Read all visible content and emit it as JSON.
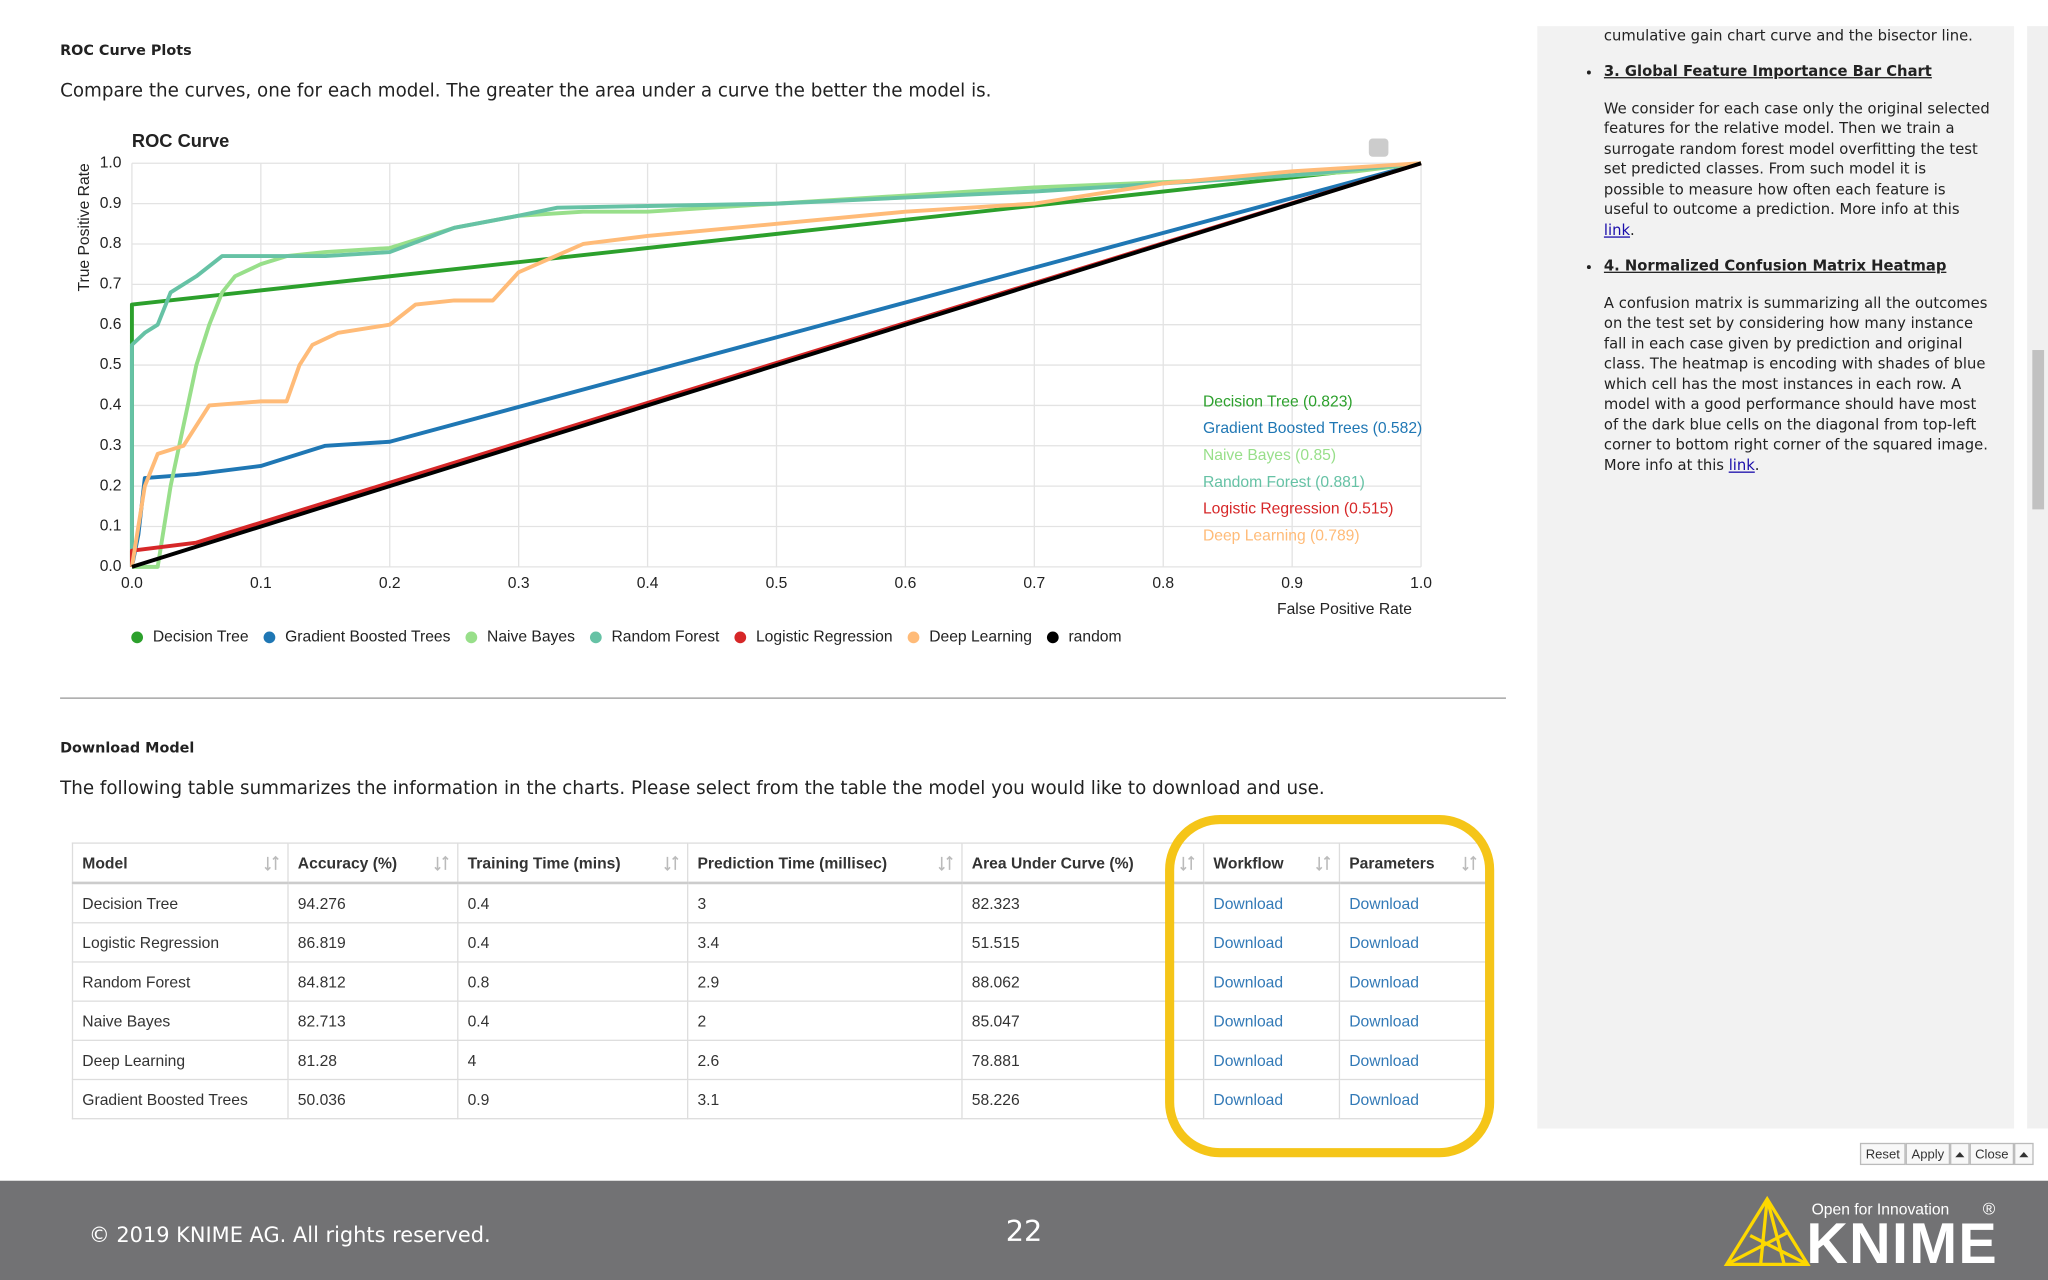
{
  "section_roc": {
    "heading": "ROC Curve Plots",
    "text": "Compare the curves, one for each model. The greater the area under a curve the better the model is."
  },
  "chart_data": {
    "type": "line",
    "title": "ROC Curve",
    "x_label": "False Positive Rate",
    "y_label": "True Positive Rate",
    "xlim": [
      0,
      1
    ],
    "ylim": [
      0,
      1
    ],
    "xticks": [
      {
        "value": 0,
        "label": "0.0"
      },
      0.1,
      0.2,
      0.3,
      0.4,
      0.5,
      0.6,
      0.7,
      0.8,
      0.9,
      {
        "value": 1,
        "label": "1.0"
      }
    ],
    "yticks": [
      {
        "value": 0,
        "label": "0.0"
      },
      0.1,
      0.2,
      0.3,
      0.4,
      0.5,
      0.6,
      0.7,
      0.8,
      0.9,
      {
        "value": 1,
        "label": "1.0"
      }
    ],
    "grid": true,
    "series": [
      {
        "name": "Decision Tree",
        "color": "#2ca02c",
        "x": [
          0,
          0,
          0,
          1
        ],
        "values": [
          0,
          0.35,
          0.65,
          1
        ]
      },
      {
        "name": "Gradient Boosted Trees",
        "color": "#1f77b4",
        "x": [
          0,
          0.005,
          0.01,
          0.05,
          0.1,
          0.12,
          0.15,
          0.2,
          1
        ],
        "values": [
          0,
          0.08,
          0.22,
          0.23,
          0.25,
          0.27,
          0.3,
          0.31,
          1
        ]
      },
      {
        "name": "Naive Bayes",
        "color": "#98df8a",
        "x": [
          0,
          0.02,
          0.03,
          0.04,
          0.05,
          0.06,
          0.07,
          0.08,
          0.1,
          0.12,
          0.15,
          0.2,
          0.25,
          0.3,
          0.35,
          0.4,
          0.5,
          0.6,
          0.7,
          0.85,
          0.9,
          0.95,
          1
        ],
        "values": [
          0,
          0,
          0.2,
          0.35,
          0.5,
          0.6,
          0.68,
          0.72,
          0.75,
          0.77,
          0.78,
          0.79,
          0.84,
          0.87,
          0.88,
          0.88,
          0.9,
          0.92,
          0.94,
          0.96,
          0.97,
          0.98,
          1
        ]
      },
      {
        "name": "Random Forest",
        "color": "#66c2a5",
        "x": [
          0,
          0,
          0.01,
          0.02,
          0.03,
          0.05,
          0.07,
          0.15,
          0.2,
          0.25,
          0.3,
          0.33,
          0.5,
          0.7,
          0.8,
          0.9,
          1
        ],
        "values": [
          0,
          0.55,
          0.58,
          0.6,
          0.68,
          0.72,
          0.77,
          0.77,
          0.78,
          0.84,
          0.87,
          0.89,
          0.9,
          0.93,
          0.95,
          0.97,
          1
        ]
      },
      {
        "name": "Logistic Regression",
        "color": "#d62728",
        "x": [
          0,
          0,
          0.05,
          1
        ],
        "values": [
          0,
          0.04,
          0.06,
          1
        ]
      },
      {
        "name": "Deep Learning",
        "color": "#ffbb78",
        "x": [
          0,
          0.01,
          0.02,
          0.04,
          0.06,
          0.1,
          0.12,
          0.13,
          0.14,
          0.16,
          0.2,
          0.22,
          0.25,
          0.28,
          0.3,
          0.35,
          0.4,
          0.5,
          0.6,
          0.7,
          0.8,
          0.9,
          1
        ],
        "values": [
          0,
          0.2,
          0.28,
          0.3,
          0.4,
          0.41,
          0.41,
          0.5,
          0.55,
          0.58,
          0.6,
          0.65,
          0.66,
          0.66,
          0.73,
          0.8,
          0.82,
          0.85,
          0.88,
          0.9,
          0.95,
          0.98,
          1
        ]
      },
      {
        "name": "random",
        "color": "#000000",
        "x": [
          0,
          1
        ],
        "values": [
          0,
          1
        ]
      }
    ],
    "annotations": [
      "Decision Tree (0.823)",
      "Gradient Boosted Trees (0.582)",
      "Naive Bayes (0.85)",
      "Random Forest (0.881)",
      "Logistic Regression (0.515)",
      "Deep Learning (0.789)"
    ]
  },
  "section_download": {
    "heading": "Download Model",
    "text": "The following table summarizes the information in the charts. Please select from the table the model you would like to download and use."
  },
  "table": {
    "columns": [
      "Model",
      "Accuracy (%)",
      "Training Time (mins)",
      "Prediction Time (millisec)",
      "Area Under Curve (%)",
      "Workflow",
      "Parameters"
    ],
    "rows": [
      [
        "Decision Tree",
        94.276,
        0.4,
        3,
        82.323,
        "Download",
        "Download"
      ],
      [
        "Logistic Regression",
        86.819,
        0.4,
        3.4,
        51.515,
        "Download",
        "Download"
      ],
      [
        "Random Forest",
        84.812,
        0.8,
        2.9,
        88.062,
        "Download",
        "Download"
      ],
      [
        "Naive Bayes",
        82.713,
        0.4,
        2,
        85.047,
        "Download",
        "Download"
      ],
      [
        "Deep Learning",
        81.28,
        4,
        2.6,
        78.881,
        "Download",
        "Download"
      ],
      [
        "Gradient Boosted Trees",
        50.036,
        0.9,
        3.1,
        58.226,
        "Download",
        "Download"
      ]
    ]
  },
  "sidebar": {
    "top_line": "cumulative gain chart curve and the bisector line.",
    "items": [
      {
        "heading": "3. Global Feature Importance Bar Chart",
        "text": "We consider for each case only the original selected features for the relative model. Then we train a surrogate random forest model overfitting the test set predicted classes. From such model it is possible to measure how often each feature is useful to outcome a prediction. More info at this ",
        "link": "link",
        "end": "."
      },
      {
        "heading": "4. Normalized Confusion Matrix Heatmap",
        "text": "A confusion matrix is summarizing all the outcomes on the test set by considering how many instance fall in each case given by prediction and original class. The heatmap is encoding with shades of blue which cell has the most instances in each row. A model with a good performance should have most of the dark blue cells on the diagonal from top-left corner to bottom right corner of the squared image. More info at this ",
        "link": "link",
        "end": "."
      }
    ]
  },
  "buttons": {
    "reset": "Reset",
    "apply": "Apply",
    "close": "Close"
  },
  "footer": {
    "copyright": "© 2019 KNIME AG. All rights reserved.",
    "page": 22,
    "tagline": "Open for Innovation",
    "brand": "KNIME",
    "registered": "®"
  }
}
